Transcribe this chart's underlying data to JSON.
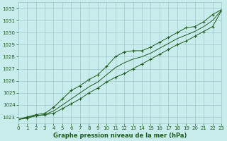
{
  "hours": [
    0,
    1,
    2,
    3,
    4,
    5,
    6,
    7,
    8,
    9,
    10,
    11,
    12,
    13,
    14,
    15,
    16,
    17,
    18,
    19,
    20,
    21,
    22,
    23
  ],
  "line_low": [
    1022.8,
    1022.9,
    1023.1,
    1023.2,
    1023.3,
    1023.7,
    1024.1,
    1024.5,
    1025.0,
    1025.4,
    1025.9,
    1026.3,
    1026.6,
    1027.0,
    1027.4,
    1027.8,
    1028.2,
    1028.6,
    1029.0,
    1029.3,
    1029.7,
    1030.1,
    1030.5,
    1031.8
  ],
  "line_high": [
    1022.8,
    1023.0,
    1023.2,
    1023.3,
    1023.8,
    1024.5,
    1025.2,
    1025.6,
    1026.1,
    1026.5,
    1027.2,
    1028.0,
    1028.4,
    1028.5,
    1028.5,
    1028.8,
    1029.2,
    1029.6,
    1030.0,
    1030.4,
    1030.5,
    1030.9,
    1031.5,
    1031.9
  ],
  "line_mid": [
    1022.8,
    1023.0,
    1023.1,
    1023.2,
    1023.5,
    1024.0,
    1024.5,
    1025.0,
    1025.5,
    1025.9,
    1026.5,
    1027.1,
    1027.5,
    1027.8,
    1028.0,
    1028.3,
    1028.7,
    1029.1,
    1029.5,
    1029.8,
    1030.1,
    1030.5,
    1031.0,
    1031.85
  ],
  "bg_color": "#c8ecec",
  "grid_color": "#9ec8c8",
  "line_color": "#1e5c1e",
  "ylabel_ticks": [
    1023,
    1024,
    1025,
    1026,
    1027,
    1028,
    1029,
    1030,
    1031,
    1032
  ],
  "xlabel": "Graphe pression niveau de la mer (hPa)",
  "xlim": [
    0,
    23
  ],
  "ylim": [
    1022.5,
    1032.5
  ],
  "xlabel_color": "#1e5c1e",
  "tick_color": "#1e5c1e",
  "tick_fontsize": 5.0,
  "xlabel_fontsize": 6.0,
  "linewidth": 0.7,
  "markersize": 3.5,
  "markeredgewidth": 0.8
}
